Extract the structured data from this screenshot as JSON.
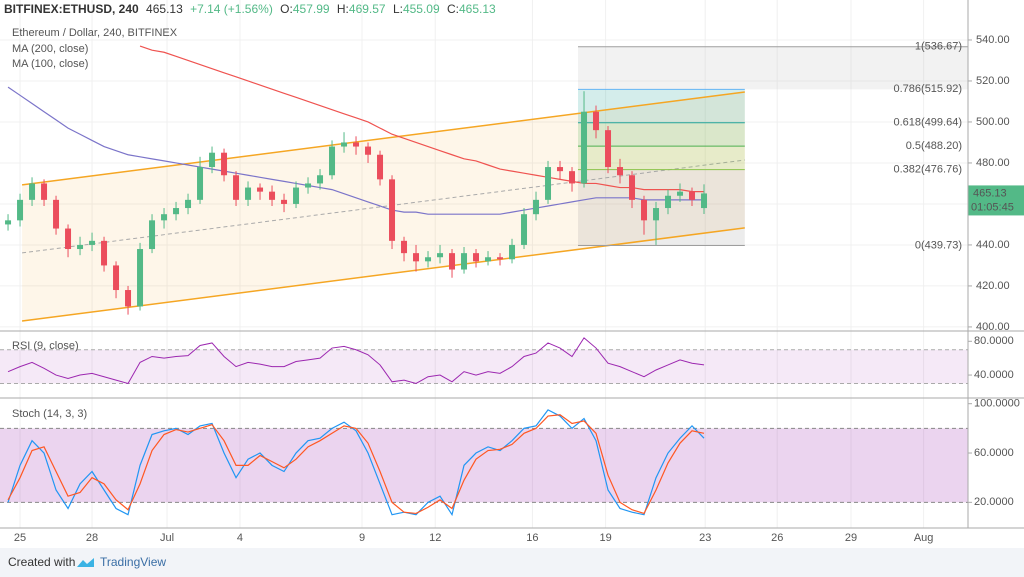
{
  "header": {
    "symbol": "BITFINEX:ETHUSD, 240",
    "change": "+7.14 (+1.56%)",
    "o": "O:",
    "h": "H:",
    "l": "L:",
    "c": "C:"
  },
  "footer": {
    "created": "Created with",
    "brand": "TradingView"
  },
  "chart_data": {
    "type": "candlestick",
    "title": "Ethereum / Dollar, 240, BITFINEX",
    "open": [
      450,
      452,
      462,
      470,
      462,
      448,
      438,
      440,
      442,
      430,
      418,
      410,
      438,
      452,
      455,
      458,
      462,
      478,
      485,
      474,
      462,
      468,
      466,
      462,
      460,
      468,
      470,
      474,
      488,
      490,
      488,
      484,
      472,
      442,
      436,
      432,
      434,
      436,
      428,
      436,
      432,
      434,
      433,
      440,
      455,
      462,
      478,
      476,
      470,
      505,
      496,
      478,
      474,
      462,
      452,
      458,
      464,
      466,
      457.99
    ],
    "high": [
      455,
      465,
      473,
      472,
      464,
      450,
      444,
      446,
      444,
      432,
      420,
      441,
      455,
      458,
      461,
      465,
      483,
      488,
      487,
      476,
      471,
      470,
      469,
      465,
      471,
      473,
      477,
      491,
      495,
      493,
      490,
      486,
      474,
      444,
      440,
      437,
      440,
      438,
      439,
      438,
      437,
      436,
      443,
      458,
      466,
      481,
      481,
      478,
      515,
      508,
      498,
      482,
      476,
      464,
      461,
      467,
      470,
      468,
      469.57
    ],
    "low": [
      447,
      449,
      459,
      459,
      445,
      434,
      435,
      437,
      427,
      414,
      406,
      408,
      436,
      448,
      452,
      455,
      460,
      475,
      471,
      459,
      459,
      462,
      459,
      456,
      458,
      465,
      467,
      472,
      485,
      484,
      480,
      469,
      438,
      432,
      427,
      429,
      431,
      424,
      426,
      429,
      430,
      430,
      431,
      438,
      452,
      460,
      472,
      466,
      468,
      492,
      475,
      470,
      458,
      445,
      440,
      455,
      461,
      459,
      455.09
    ],
    "close": [
      452,
      462,
      470,
      462,
      448,
      438,
      440,
      442,
      430,
      418,
      410,
      438,
      452,
      455,
      458,
      462,
      478,
      485,
      474,
      462,
      468,
      466,
      462,
      460,
      468,
      470,
      474,
      488,
      490,
      488,
      484,
      472,
      442,
      436,
      432,
      434,
      436,
      428,
      436,
      432,
      434,
      433,
      440,
      455,
      462,
      478,
      476,
      470,
      505,
      496,
      478,
      474,
      462,
      452,
      458,
      464,
      466,
      462,
      465.13
    ],
    "up_color": "#53b987",
    "down_color": "#eb4d5c",
    "xlim": [
      -0.67,
      80
    ],
    "xticks": [
      {
        "value": 1,
        "label": "25"
      },
      {
        "value": 7,
        "label": "28"
      },
      {
        "value": 13.25,
        "label": "Jul"
      },
      {
        "value": 19.33,
        "label": "4"
      },
      {
        "value": 29.5,
        "label": "9"
      },
      {
        "value": 35.6,
        "label": "12"
      },
      {
        "value": 43.7,
        "label": "16"
      },
      {
        "value": 49.8,
        "label": "19"
      },
      {
        "value": 58.1,
        "label": "23"
      },
      {
        "value": 64.1,
        "label": "26"
      },
      {
        "value": 70.25,
        "label": "29"
      },
      {
        "value": 76.3,
        "label": "Aug"
      }
    ],
    "ylim": [
      398.5,
      559.5
    ],
    "yticks": [
      {
        "value": 400,
        "label": "400.00"
      },
      {
        "value": 420,
        "label": "420.00"
      },
      {
        "value": 440,
        "label": "440.00"
      },
      {
        "value": 460,
        "label": "460.00"
      },
      {
        "value": 480,
        "label": "480.00"
      },
      {
        "value": 500,
        "label": "500.00"
      },
      {
        "value": 520,
        "label": "520.00"
      },
      {
        "value": 540,
        "label": "540.00"
      }
    ],
    "countdown": "01:05:45",
    "series": [
      {
        "name": "MA (200, close)",
        "color": "#ef5350",
        "values": [
          null,
          null,
          null,
          null,
          null,
          null,
          null,
          null,
          null,
          null,
          null,
          537,
          535,
          534,
          532,
          530,
          528,
          526,
          524,
          522,
          520,
          518,
          516,
          514,
          512,
          510,
          508,
          506,
          504,
          502,
          500,
          497,
          494,
          492,
          490,
          488,
          486,
          484,
          482,
          481,
          479,
          477,
          476,
          475,
          474,
          473,
          472,
          471,
          470,
          470,
          469,
          468,
          468,
          467,
          467,
          467,
          467,
          466,
          466
        ]
      },
      {
        "name": "MA (100, close)",
        "color": "#7b74c9",
        "values": [
          517,
          513,
          509,
          505,
          501,
          497,
          494,
          491,
          488,
          486,
          484,
          483,
          482,
          481,
          480,
          479,
          478,
          477,
          476,
          475,
          474,
          473,
          472,
          471,
          470,
          469,
          468,
          467,
          465,
          463,
          461,
          459,
          457,
          456,
          456,
          455,
          455,
          455,
          455,
          455,
          455,
          455,
          456,
          457,
          458,
          459,
          460,
          461,
          462,
          463,
          463,
          463,
          463,
          462,
          462,
          462,
          462,
          462,
          462
        ]
      }
    ],
    "channel": {
      "x": [
        1.17,
        61.4
      ],
      "upper": [
        469.3,
        514.6
      ],
      "lower": [
        402.9,
        448.3
      ],
      "color": "#f5a623"
    },
    "fib": {
      "x": [
        47.5,
        61.4
      ],
      "levels": [
        {
          "value": 536.67,
          "label": "1(536.67)",
          "color": "#9e9e9e"
        },
        {
          "value": 515.92,
          "label": "0.786(515.92)",
          "color": "#64b5f6"
        },
        {
          "value": 499.64,
          "label": "0.618(499.64)",
          "color": "#26a69a"
        },
        {
          "value": 488.2,
          "label": "0.5(488.20)",
          "color": "#4caf50"
        },
        {
          "value": 476.76,
          "label": "0.382(476.76)",
          "color": "#8bc34a"
        },
        {
          "value": 439.73,
          "label": "0(439.73)",
          "color": "#9e9e9e"
        }
      ]
    },
    "rsi": {
      "title": "RSI (9, close)",
      "color": "#9c27b0",
      "ylim": [
        14,
        91
      ],
      "yticks": [
        {
          "value": 80,
          "label": "80.0000"
        },
        {
          "value": 40,
          "label": "40.0000"
        }
      ],
      "band": [
        70,
        30
      ],
      "values": [
        44,
        50,
        55,
        48,
        40,
        36,
        40,
        42,
        38,
        34,
        30,
        55,
        62,
        60,
        62,
        63,
        75,
        78,
        62,
        50,
        55,
        53,
        50,
        50,
        56,
        58,
        60,
        72,
        74,
        70,
        64,
        52,
        32,
        34,
        30,
        38,
        40,
        32,
        44,
        40,
        44,
        42,
        50,
        62,
        66,
        78,
        72,
        62,
        84,
        72,
        54,
        50,
        44,
        38,
        46,
        52,
        58,
        54,
        52
      ]
    },
    "stoch": {
      "title": "Stoch (14, 3, 3)",
      "ylim": [
        0,
        103
      ],
      "yticks": [
        {
          "value": 100,
          "label": "100.0000"
        },
        {
          "value": 60,
          "label": "60.0000"
        },
        {
          "value": 20,
          "label": "20.0000"
        }
      ],
      "band": [
        80,
        20
      ],
      "series": [
        {
          "color": "#2196f3",
          "values": [
            20,
            50,
            70,
            60,
            30,
            15,
            35,
            45,
            30,
            15,
            10,
            50,
            75,
            78,
            80,
            75,
            82,
            84,
            60,
            40,
            55,
            60,
            50,
            45,
            60,
            70,
            72,
            80,
            85,
            78,
            60,
            35,
            10,
            12,
            10,
            20,
            25,
            10,
            50,
            60,
            65,
            62,
            70,
            80,
            82,
            95,
            90,
            80,
            88,
            70,
            30,
            15,
            12,
            10,
            40,
            60,
            72,
            82,
            72
          ]
        },
        {
          "color": "#ff5722",
          "values": [
            22,
            40,
            62,
            65,
            45,
            25,
            28,
            40,
            35,
            22,
            14,
            35,
            62,
            75,
            79,
            77,
            80,
            83,
            70,
            50,
            50,
            58,
            53,
            48,
            55,
            65,
            70,
            76,
            82,
            80,
            68,
            45,
            20,
            12,
            11,
            16,
            22,
            15,
            38,
            55,
            62,
            63,
            67,
            76,
            80,
            90,
            91,
            84,
            86,
            76,
            42,
            20,
            14,
            11,
            30,
            52,
            68,
            78,
            76
          ]
        }
      ]
    }
  }
}
